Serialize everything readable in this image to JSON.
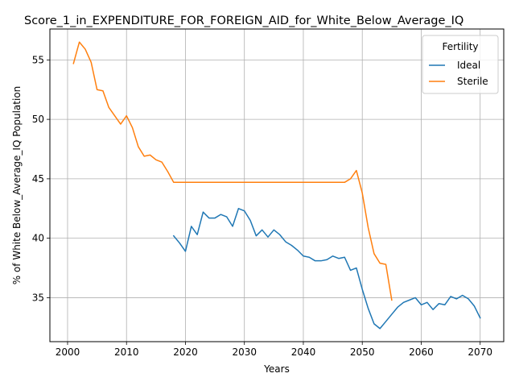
{
  "chart_data": {
    "type": "line",
    "title": "Score_1_in_EXPENDITURE_FOR_FOREIGN_AID_for_White_Below_Average_IQ",
    "xlabel": "Years",
    "ylabel": "% of White Below_Average_IQ Population",
    "xlim": [
      1997,
      2074
    ],
    "ylim": [
      31.3,
      57.6
    ],
    "xticks": [
      2000,
      2010,
      2020,
      2030,
      2040,
      2050,
      2060,
      2070
    ],
    "yticks": [
      35,
      40,
      45,
      50,
      55
    ],
    "grid": true,
    "legend": {
      "title": "Fertility",
      "placement": "top-right"
    },
    "series": [
      {
        "name": "Ideal",
        "color": "#1f77b4",
        "x": [
          2018,
          2019,
          2020,
          2021,
          2022,
          2023,
          2024,
          2025,
          2026,
          2027,
          2028,
          2029,
          2030,
          2031,
          2032,
          2033,
          2034,
          2035,
          2036,
          2037,
          2038,
          2039,
          2040,
          2041,
          2042,
          2043,
          2044,
          2045,
          2046,
          2047,
          2048,
          2049,
          2050,
          2051,
          2052,
          2053,
          2054,
          2055,
          2056,
          2057,
          2058,
          2059,
          2060,
          2061,
          2062,
          2063,
          2064,
          2065,
          2066,
          2067,
          2068,
          2069,
          2070
        ],
        "values": [
          40.2,
          39.6,
          38.9,
          41.0,
          40.3,
          42.2,
          41.7,
          41.7,
          42.0,
          41.8,
          41.0,
          42.5,
          42.3,
          41.5,
          40.2,
          40.7,
          40.1,
          40.7,
          40.3,
          39.7,
          39.4,
          39.0,
          38.5,
          38.4,
          38.1,
          38.1,
          38.2,
          38.5,
          38.3,
          38.4,
          37.3,
          37.5,
          35.7,
          34.1,
          32.8,
          32.4,
          33.0,
          33.6,
          34.2,
          34.6,
          34.8,
          35.0,
          34.4,
          34.6,
          34.0,
          34.5,
          34.4,
          35.1,
          34.9,
          35.2,
          34.9,
          34.3,
          33.3
        ]
      },
      {
        "name": "Sterile",
        "color": "#ff7f0e",
        "x": [
          2001,
          2002,
          2003,
          2004,
          2005,
          2006,
          2007,
          2008,
          2009,
          2010,
          2011,
          2012,
          2013,
          2014,
          2015,
          2016,
          2017,
          2018,
          2019,
          2020,
          2021,
          2022,
          2023,
          2024,
          2025,
          2026,
          2027,
          2028,
          2029,
          2030,
          2031,
          2032,
          2033,
          2034,
          2035,
          2036,
          2037,
          2038,
          2039,
          2040,
          2041,
          2042,
          2043,
          2044,
          2045,
          2046,
          2047,
          2048,
          2049,
          2050,
          2051,
          2052,
          2053,
          2054,
          2055
        ],
        "values": [
          54.7,
          56.5,
          55.9,
          54.8,
          52.5,
          52.4,
          51.0,
          50.3,
          49.6,
          50.3,
          49.3,
          47.7,
          46.9,
          47.0,
          46.6,
          46.4,
          45.6,
          44.7,
          44.7,
          44.7,
          44.7,
          44.7,
          44.7,
          44.7,
          44.7,
          44.7,
          44.7,
          44.7,
          44.7,
          44.7,
          44.7,
          44.7,
          44.7,
          44.7,
          44.7,
          44.7,
          44.7,
          44.7,
          44.7,
          44.7,
          44.7,
          44.7,
          44.7,
          44.7,
          44.7,
          44.7,
          44.7,
          45.0,
          45.7,
          43.8,
          40.9,
          38.7,
          37.9,
          37.8,
          34.8
        ]
      }
    ]
  }
}
